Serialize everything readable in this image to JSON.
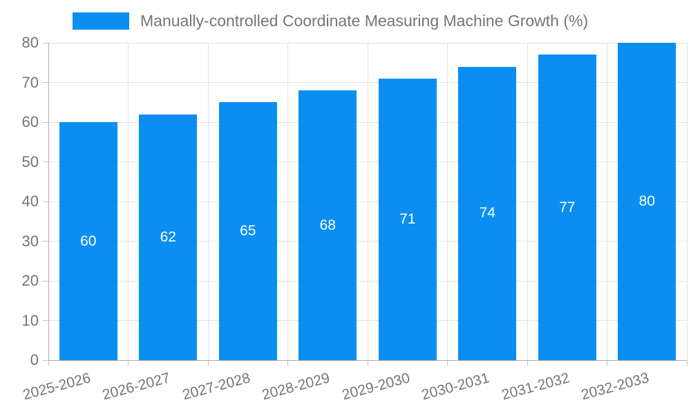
{
  "chart_data": {
    "type": "bar",
    "title": "",
    "categories": [
      "2025-2026",
      "2026-2027",
      "2027-2028",
      "2028-2029",
      "2029-2030",
      "2030-2031",
      "2031-2032",
      "2032-2033"
    ],
    "series": [
      {
        "name": "Manually-controlled Coordinate Measuring Machine Growth (%)",
        "values": [
          60,
          62,
          65,
          68,
          71,
          74,
          77,
          80
        ]
      }
    ],
    "value_labels": [
      "60",
      "62",
      "65",
      "68",
      "71",
      "74",
      "77",
      "80"
    ],
    "xlabel": "",
    "ylabel": "",
    "ylim": [
      0,
      80
    ],
    "ytick_step": 10,
    "ytick_labels": [
      "0",
      "10",
      "20",
      "30",
      "40",
      "50",
      "60",
      "70",
      "80"
    ],
    "grid": "on",
    "legend_position": "top-left",
    "x_label_rotation_deg": -15,
    "colors": {
      "bar": "#0a8ff0",
      "value_label": "#ffffff",
      "axis_text": "#757575",
      "grid_line": "#e2e2e2",
      "axis_line": "#ababab",
      "tick_mark": "#c2c2c2",
      "background": "#ffffff"
    }
  }
}
